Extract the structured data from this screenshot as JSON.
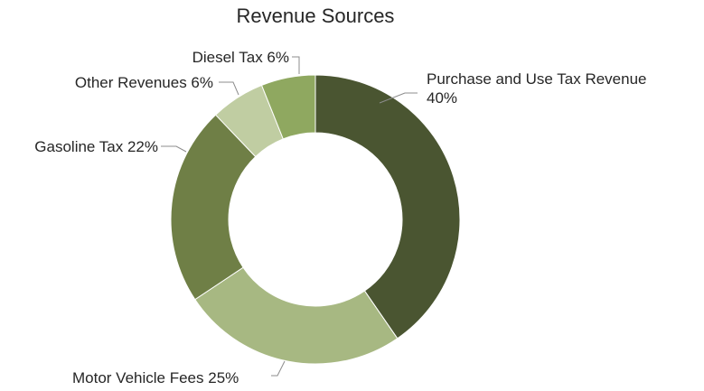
{
  "chart_data": {
    "type": "pie",
    "variant": "donut",
    "title": "Revenue Sources",
    "slices": [
      {
        "label": "Purchase and Use Tax Revenue",
        "value": 40,
        "value_label": "40%",
        "color": "#4a5531"
      },
      {
        "label": "Motor Vehicle Fees",
        "value": 25,
        "value_label": "25%",
        "color": "#a7b882"
      },
      {
        "label": "Gasoline Tax",
        "value": 22,
        "value_label": "22%",
        "color": "#6f7f46"
      },
      {
        "label": "Other Revenues",
        "value": 6,
        "value_label": "6%",
        "color": "#c0cda2"
      },
      {
        "label": "Diesel Tax",
        "value": 6,
        "value_label": "6%",
        "color": "#8fa860"
      }
    ],
    "legend": "none"
  }
}
